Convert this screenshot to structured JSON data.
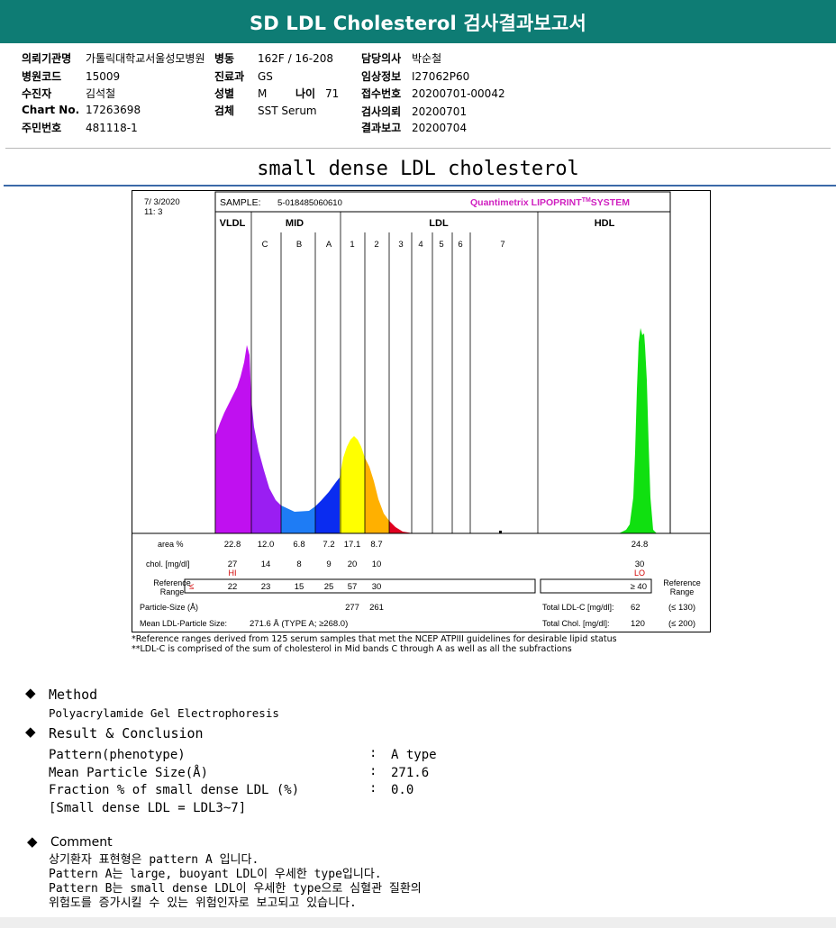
{
  "header": {
    "title": "SD LDL Cholesterol 검사결과보고서"
  },
  "patient": {
    "col1": [
      {
        "label": "의뢰기관명",
        "value": "가톨릭대학교서울성모병원"
      },
      {
        "label": "병원코드",
        "value": "15009"
      },
      {
        "label": "수진자",
        "value": "김석철"
      },
      {
        "label": "Chart No.",
        "value": "17263698"
      },
      {
        "label": "주민번호",
        "value": "481118-1"
      }
    ],
    "col2": [
      {
        "label": "병동",
        "value": "162F / 16-208"
      },
      {
        "label": "진료과",
        "value": "GS"
      },
      {
        "label": "성별",
        "value": "M"
      },
      {
        "label": "검체",
        "value": "SST Serum"
      }
    ],
    "age": {
      "label": "나이",
      "value": "71"
    },
    "col3": [
      {
        "label": "담당의사",
        "value": "박순철"
      },
      {
        "label": "임상정보",
        "value": "I27062P60"
      },
      {
        "label": "접수번호",
        "value": "20200701-00042"
      },
      {
        "label": "검사의뢰",
        "value": "20200701"
      },
      {
        "label": "결과보고",
        "value": "20200704"
      }
    ]
  },
  "section_title": "small dense LDL cholesterol",
  "chart_data": {
    "type": "area",
    "date": "7/ 3/2020",
    "time": "11: 3",
    "sample_label": "SAMPLE:",
    "sample_id": "5-018485060610",
    "brand": "Quantimetrix LIPOPRINT",
    "brand_tm": "TM",
    "brand_suffix": "SYSTEM",
    "groups": [
      "VLDL",
      "MID",
      "LDL",
      "HDL"
    ],
    "bands": [
      "C",
      "B",
      "A",
      "1",
      "2",
      "3",
      "4",
      "5",
      "6",
      "7"
    ],
    "band_colors": {
      "VLDL": "#c010f0",
      "C": "#9a1ef2",
      "B": "#1e7cf5",
      "A": "#0a2cf0",
      "1": "#ffff00",
      "2": "#ffb000",
      "3": "#e00020",
      "HDL": "#10e010"
    },
    "rows": {
      "area_label": "area %",
      "area": [
        "22.8",
        "12.0",
        "6.8",
        "7.2",
        "17.1",
        "8.7"
      ],
      "hdl_area": "24.8",
      "chol_label": "chol. [mg/dl]",
      "chol": [
        "27",
        "14",
        "8",
        "9",
        "20",
        "10"
      ],
      "hdl_chol": "30",
      "flag_hi": "HI",
      "flag_lo": "LO",
      "ref_label_1": "Reference",
      "ref_label_2": "Range",
      "ref_le": "≤",
      "ref": [
        "22",
        "23",
        "15",
        "25",
        "57",
        "30"
      ],
      "hdl_ref": "≥ 40",
      "particle_label": "Particle-Size (Å)",
      "particle": [
        "277",
        "261"
      ],
      "mean_label": "Mean LDL-Particle Size:",
      "mean_value": "271.6 Å  (TYPE A; ≥268.0)",
      "total_ldl_label": "Total LDL-C [mg/dl]:",
      "total_ldl_value": "62",
      "total_ldl_ref": "(≤ 130)",
      "total_chol_label": "Total Chol. [mg/dl]:",
      "total_chol_value": "120",
      "total_chol_ref": "(≤ 200)"
    }
  },
  "notes": [
    "*Reference ranges derived from 125 serum samples that met the NCEP ATPIII guidelines for desirable lipid status",
    "**LDL-C is comprised of the sum of cholesterol in Mid bands C through A as well as all the subfractions"
  ],
  "method": {
    "heading": "Method",
    "text": "Polyacrylamide Gel Electrophoresis"
  },
  "result": {
    "heading": "Result & Conclusion",
    "rows": [
      {
        "label": "Pattern(phenotype)",
        "sep": ":",
        "value": "A type"
      },
      {
        "label": "Mean Particle Size(Å)",
        "sep": ":",
        "value": "271.6"
      },
      {
        "label": "Fraction % of small dense LDL (%)",
        "sep": ":",
        "value": "0.0"
      }
    ],
    "footnote": "[Small dense LDL = LDL3~7]"
  },
  "comment": {
    "heading": "Comment",
    "lines": [
      "상기환자 표현형은 pattern A 입니다.",
      "Pattern A는 large, buoyant LDL이 우세한 type입니다.",
      "Pattern B는 small dense LDL이 우세한 type으로 심혈관 질환의",
      "위험도를 증가시킬 수 있는 위험인자로 보고되고 있습니다."
    ]
  },
  "bullet_glyph": "◆"
}
